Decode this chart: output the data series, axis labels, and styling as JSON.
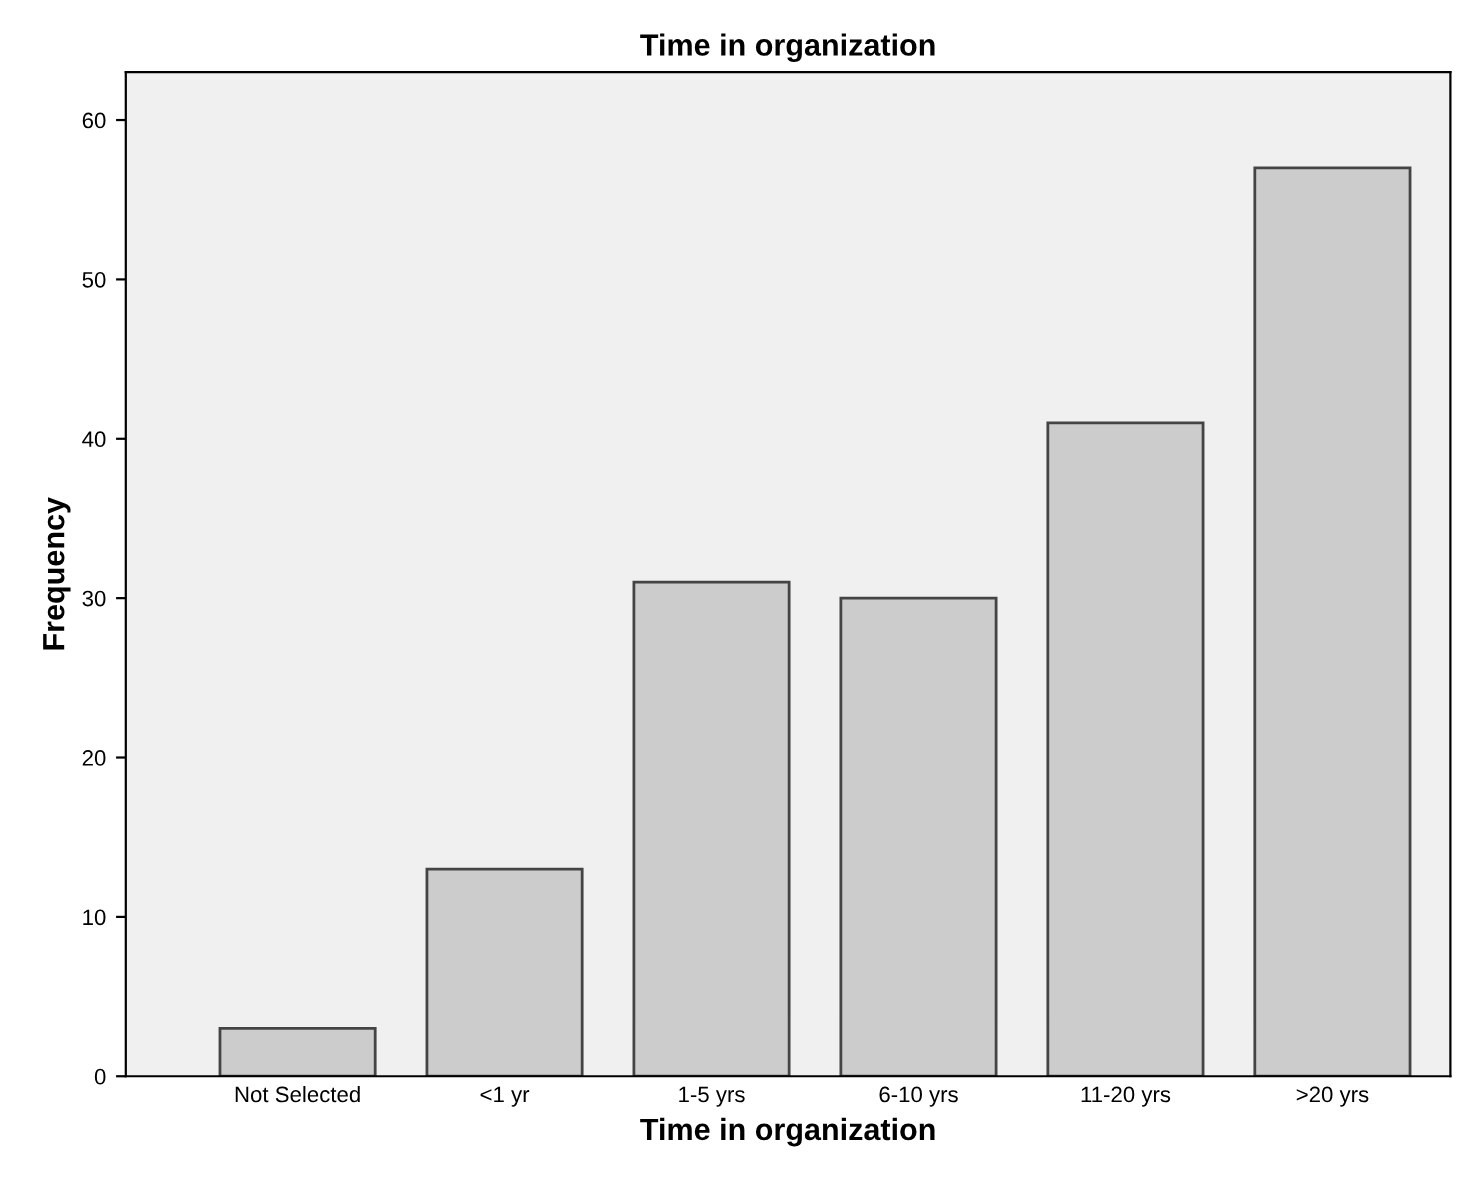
{
  "chart_data": {
    "type": "bar",
    "title": "Time in organization",
    "xlabel": "Time in organization",
    "ylabel": "Frequency",
    "categories": [
      "Not Selected",
      "<1 yr",
      "1-5 yrs",
      "6-10 yrs",
      "11-20 yrs",
      ">20 yrs"
    ],
    "values": [
      3,
      13,
      31,
      30,
      41,
      57
    ],
    "color": "#cccccc",
    "ylim": [
      0,
      63
    ],
    "yticks": [
      0,
      10,
      20,
      30,
      40,
      50,
      60
    ],
    "grid": false,
    "legend": false
  }
}
